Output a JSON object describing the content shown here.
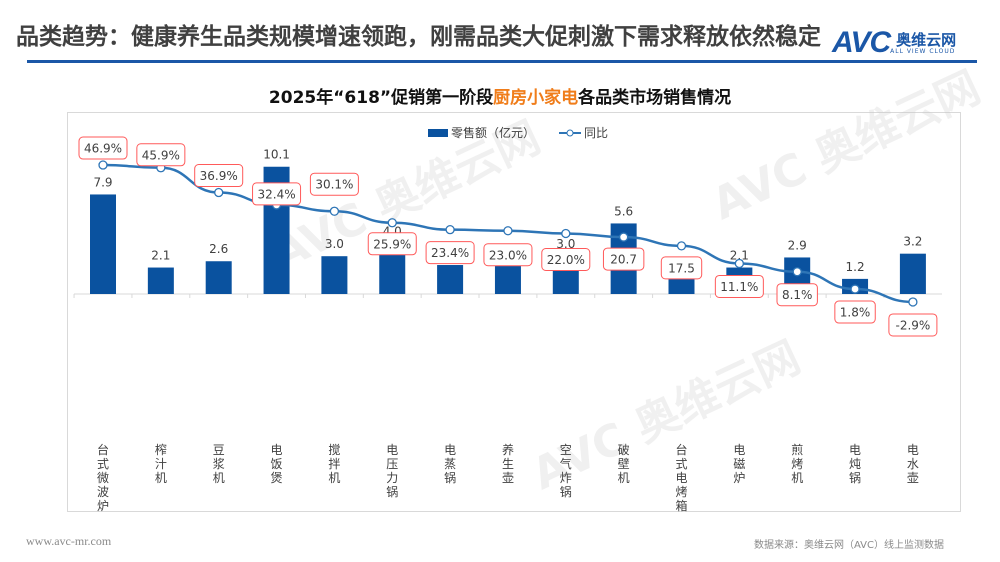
{
  "header": {
    "title": "品类趋势：健康养生品类规模增速领跑，刚需品类大促刺激下需求释放依然稳定",
    "logo_text": "AVC",
    "logo_cn": "奥维云网",
    "logo_en": "ALL VIEW CLOUD"
  },
  "chart_title": {
    "prefix": "2025年“618”促销第一阶段",
    "highlight": "厨房小家电",
    "suffix": "各品类市场销售情况"
  },
  "colors": {
    "bar": "#0a529f",
    "line": "#2e75b6",
    "label_border": "#ff5a5a",
    "highlight": "#f07d1a",
    "rule": "#1b57a7"
  },
  "chart_data": {
    "type": "bar+line",
    "categories": [
      "台式微波炉",
      "榨汁机",
      "豆浆机",
      "电饭煲",
      "搅拌机",
      "电压力锅",
      "电蒸锅",
      "养生壶",
      "空气炸锅",
      "破壁机",
      "台式电烤箱",
      "电磁炉",
      "煎烤机",
      "电炖锅",
      "电水壶"
    ],
    "series": [
      {
        "name": "零售额（亿元）",
        "type": "bar",
        "values": [
          7.9,
          2.1,
          2.6,
          10.1,
          3.0,
          4.0,
          2.3,
          2.4,
          3.0,
          5.6,
          1.3,
          2.1,
          2.9,
          1.2,
          3.2
        ],
        "labels": [
          "7.9",
          "2.1",
          "2.6",
          "10.1",
          "3.0",
          "4.0",
          "",
          "",
          "3.0",
          "5.6",
          "",
          "2.1",
          "2.9",
          "1.2",
          "3.2"
        ]
      },
      {
        "name": "同比",
        "type": "line",
        "values": [
          46.9,
          45.9,
          36.9,
          32.4,
          30.1,
          25.9,
          23.4,
          23.0,
          22.0,
          20.7,
          17.5,
          11.1,
          8.1,
          1.8,
          -2.9
        ],
        "labels": [
          "46.9%",
          "45.9%",
          "36.9%",
          "32.4%",
          "30.1%",
          "25.9%",
          "23.4%",
          "23.0%",
          "22.0%",
          "20.7",
          "17.5",
          "11.1%",
          "8.1%",
          "1.8%",
          "-2.9%"
        ]
      }
    ],
    "legend": "top-center",
    "grid": false
  },
  "watermark": {
    "text": "AVC 奥维云网",
    "sub": "ALL VIEW CLOUD"
  },
  "footer": {
    "site": "www.avc-mr.com",
    "source": "数据来源：奥维云网（AVC）线上监测数据"
  }
}
